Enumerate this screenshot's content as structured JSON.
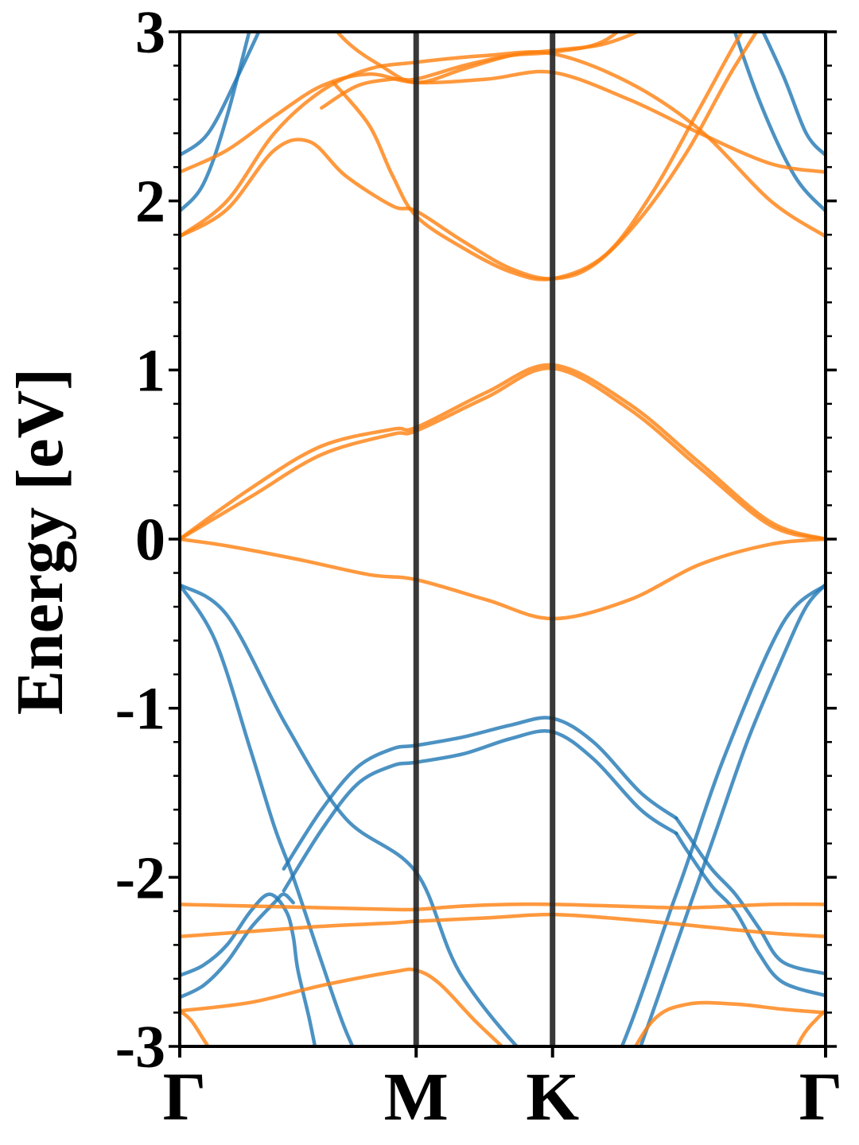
{
  "chart_data": {
    "type": "line",
    "title": "",
    "xlabel": "",
    "ylabel": "Energy [eV]",
    "ylim": [
      -3,
      3
    ],
    "yticks": [
      -3,
      -2,
      -1,
      0,
      1,
      2,
      3
    ],
    "ytick_labels": [
      "-3",
      "-2",
      "-1",
      "0",
      "1",
      "2",
      "3"
    ],
    "xticks": [
      0,
      1,
      1.577,
      2.732
    ],
    "xtick_labels": [
      "Γ",
      "M",
      "K",
      "Γ"
    ],
    "grid": false,
    "legend": "none",
    "colors": {
      "blue": "#1f77b4",
      "orange": "#ff7f0e",
      "kline": "#222222"
    },
    "series": [
      {
        "color": "blue",
        "x": [
          0,
          0.2,
          0.45,
          0.7,
          1.0,
          1.2,
          1.577,
          1.8,
          2.1,
          2.3,
          2.55,
          2.732
        ],
        "y": [
          -0.27,
          -0.45,
          -1.1,
          -1.65,
          -1.97,
          -2.6,
          -3.2,
          -3.2,
          -2.1,
          -1.3,
          -0.5,
          -0.27
        ]
      },
      {
        "color": "blue",
        "x": [
          0,
          0.15,
          0.3,
          0.4,
          0.48,
          0.6,
          0.7,
          0.8
        ],
        "y": [
          -0.27,
          -0.6,
          -1.25,
          -1.7,
          -2.0,
          -2.5,
          -2.9,
          -3.2
        ]
      },
      {
        "color": "blue",
        "x": [
          1.9,
          2.05,
          2.25,
          2.4,
          2.55,
          2.65,
          2.732
        ],
        "y": [
          -3.2,
          -2.6,
          -1.8,
          -1.2,
          -0.7,
          -0.4,
          -0.27
        ]
      },
      {
        "color": "blue",
        "x": [
          0,
          0.1,
          0.2,
          0.3,
          0.38,
          0.45,
          0.48,
          0.5,
          0.55,
          0.6
        ],
        "y": [
          -2.58,
          -2.52,
          -2.4,
          -2.2,
          -2.1,
          -2.2,
          -2.35,
          -2.55,
          -2.85,
          -3.2
        ]
      },
      {
        "color": "blue",
        "x": [
          0,
          0.1,
          0.2,
          0.3,
          0.4,
          0.44,
          0.48
        ],
        "y": [
          -2.71,
          -2.64,
          -2.5,
          -2.3,
          -2.15,
          -2.1,
          -2.15
        ]
      },
      {
        "color": "blue",
        "x": [
          0.44,
          0.6,
          0.75,
          0.9,
          1.0,
          1.2,
          1.4,
          1.577,
          1.75,
          1.95,
          2.1
        ],
        "y": [
          -1.95,
          -1.6,
          -1.35,
          -1.24,
          -1.22,
          -1.17,
          -1.1,
          -1.06,
          -1.2,
          -1.5,
          -1.65
        ]
      },
      {
        "color": "blue",
        "x": [
          0.44,
          0.6,
          0.75,
          0.9,
          1.0,
          1.2,
          1.4,
          1.577,
          1.75,
          1.95,
          2.1
        ],
        "y": [
          -2.08,
          -1.72,
          -1.45,
          -1.34,
          -1.32,
          -1.27,
          -1.18,
          -1.14,
          -1.3,
          -1.6,
          -1.74
        ]
      },
      {
        "color": "blue",
        "x": [
          2.1,
          2.15,
          2.25,
          2.35,
          2.45,
          2.55,
          2.732
        ],
        "y": [
          -1.65,
          -1.75,
          -1.95,
          -2.1,
          -2.3,
          -2.5,
          -2.57
        ]
      },
      {
        "color": "blue",
        "x": [
          2.1,
          2.15,
          2.25,
          2.35,
          2.45,
          2.55,
          2.732
        ],
        "y": [
          -1.74,
          -1.85,
          -2.05,
          -2.2,
          -2.45,
          -2.62,
          -2.7
        ]
      },
      {
        "color": "blue",
        "x": [
          0,
          0.12,
          0.25,
          0.4
        ],
        "y": [
          2.27,
          2.4,
          2.75,
          3.2
        ]
      },
      {
        "color": "blue",
        "x": [
          0,
          0.1,
          0.2,
          0.33
        ],
        "y": [
          1.94,
          2.1,
          2.5,
          3.2
        ]
      },
      {
        "color": "blue",
        "x": [
          2.4,
          2.55,
          2.65,
          2.732
        ],
        "y": [
          3.2,
          2.75,
          2.4,
          2.27
        ]
      },
      {
        "color": "blue",
        "x": [
          2.3,
          2.45,
          2.6,
          2.732
        ],
        "y": [
          3.2,
          2.6,
          2.15,
          1.94
        ]
      },
      {
        "color": "orange",
        "x": [
          0,
          0.3,
          0.6,
          0.9,
          1.0,
          1.3,
          1.577,
          1.9,
          2.2,
          2.5,
          2.732
        ],
        "y": [
          0.0,
          0.3,
          0.55,
          0.65,
          0.66,
          0.87,
          1.03,
          0.8,
          0.45,
          0.1,
          0.0
        ]
      },
      {
        "color": "orange",
        "x": [
          0,
          0.3,
          0.6,
          0.9,
          1.0,
          1.3,
          1.577,
          1.9,
          2.2,
          2.5,
          2.732
        ],
        "y": [
          0.0,
          0.25,
          0.5,
          0.62,
          0.64,
          0.84,
          1.01,
          0.77,
          0.42,
          0.08,
          0.0
        ]
      },
      {
        "color": "orange",
        "x": [
          0,
          0.2,
          0.5,
          0.8,
          1.0,
          1.3,
          1.577,
          1.9,
          2.2,
          2.5,
          2.732
        ],
        "y": [
          0.0,
          -0.04,
          -0.12,
          -0.21,
          -0.24,
          -0.36,
          -0.47,
          -0.36,
          -0.15,
          -0.03,
          0.0
        ]
      },
      {
        "color": "orange",
        "x": [
          0,
          0.3,
          0.6,
          0.9,
          1.0,
          1.2,
          1.4,
          1.577,
          1.85,
          2.15,
          2.5,
          2.732
        ],
        "y": [
          -2.16,
          -2.17,
          -2.18,
          -2.19,
          -2.19,
          -2.17,
          -2.16,
          -2.16,
          -2.17,
          -2.18,
          -2.16,
          -2.16
        ]
      },
      {
        "color": "orange",
        "x": [
          0,
          0.3,
          0.6,
          0.9,
          1.0,
          1.3,
          1.577,
          1.9,
          2.2,
          2.5,
          2.732
        ],
        "y": [
          -2.35,
          -2.32,
          -2.29,
          -2.27,
          -2.26,
          -2.24,
          -2.22,
          -2.25,
          -2.29,
          -2.33,
          -2.35
        ]
      },
      {
        "color": "orange",
        "x": [
          0,
          0.3,
          0.6,
          0.9,
          1.0,
          1.1,
          1.25,
          1.4,
          1.5
        ],
        "y": [
          -2.79,
          -2.74,
          -2.64,
          -2.56,
          -2.55,
          -2.63,
          -2.85,
          -3.05,
          -3.2
        ]
      },
      {
        "color": "orange",
        "x": [
          0,
          0.05,
          0.12,
          0.22
        ],
        "y": [
          -2.79,
          -2.85,
          -3.0,
          -3.2
        ]
      },
      {
        "color": "orange",
        "x": [
          1.85,
          2.0,
          2.15,
          2.35,
          2.55,
          2.732
        ],
        "y": [
          -3.2,
          -2.85,
          -2.75,
          -2.75,
          -2.78,
          -2.8
        ]
      },
      {
        "color": "orange",
        "x": [
          2.55,
          2.63,
          2.7,
          2.732
        ],
        "y": [
          -3.2,
          -2.95,
          -2.83,
          -2.79
        ]
      },
      {
        "color": "orange",
        "x": [
          0,
          0.2,
          0.4,
          0.55,
          0.7,
          0.9,
          1.0,
          1.2,
          1.4,
          1.577,
          1.75,
          1.95,
          2.15,
          2.35,
          2.55,
          2.732
        ],
        "y": [
          1.79,
          1.95,
          2.3,
          2.35,
          2.15,
          1.97,
          1.94,
          1.76,
          1.6,
          1.54,
          1.62,
          1.9,
          2.3,
          2.8,
          3.2,
          3.3
        ]
      },
      {
        "color": "orange",
        "x": [
          0.65,
          0.8,
          0.9,
          1.0,
          1.2,
          1.4,
          1.577,
          1.8,
          2.0,
          2.2,
          2.4,
          2.55
        ],
        "y": [
          2.7,
          2.45,
          2.15,
          1.91,
          1.72,
          1.58,
          1.54,
          1.68,
          2.05,
          2.55,
          3.05,
          3.3
        ]
      },
      {
        "color": "orange",
        "x": [
          0,
          0.2,
          0.4,
          0.6,
          0.8,
          1.0,
          1.3,
          1.577,
          1.9,
          2.2,
          2.5,
          2.732
        ],
        "y": [
          2.17,
          2.3,
          2.5,
          2.68,
          2.75,
          2.7,
          2.72,
          2.76,
          2.6,
          2.4,
          2.22,
          2.17
        ]
      },
      {
        "color": "orange",
        "x": [
          0,
          0.2,
          0.4,
          0.6,
          0.8,
          1.0,
          1.3,
          1.577,
          1.9,
          2.2,
          2.5,
          2.732
        ],
        "y": [
          1.79,
          2.0,
          2.4,
          2.65,
          2.78,
          2.82,
          2.86,
          2.87,
          2.7,
          2.42,
          2.0,
          1.79
        ]
      },
      {
        "color": "orange",
        "x": [
          0.55,
          0.7,
          0.85,
          1.0,
          1.2,
          1.4,
          1.577,
          1.8,
          2.0,
          2.1
        ],
        "y": [
          3.2,
          2.95,
          2.8,
          2.7,
          2.78,
          2.86,
          2.89,
          2.93,
          3.05,
          3.2
        ]
      },
      {
        "color": "orange",
        "x": [
          0.6,
          0.75,
          0.9,
          1.0,
          1.2,
          1.4,
          1.577,
          1.8,
          2.0
        ],
        "y": [
          2.55,
          2.68,
          2.72,
          2.72,
          2.8,
          2.86,
          2.88,
          2.95,
          3.2
        ]
      }
    ]
  }
}
